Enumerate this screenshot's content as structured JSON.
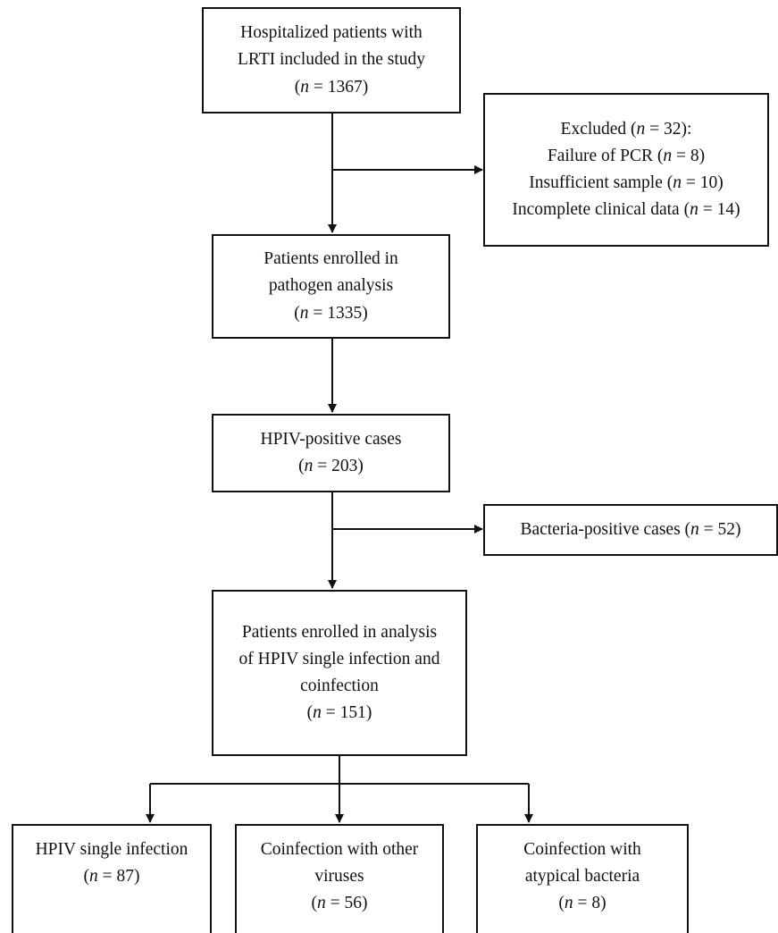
{
  "boxes": {
    "included": {
      "line1": "Hospitalized patients with",
      "line2": "LRTI included in the study",
      "count": "1367"
    },
    "excluded": {
      "head": "Excluded (",
      "head_count": "32",
      "head_tail": "):",
      "reason1": "Failure of PCR",
      "reason1_count": "8",
      "reason2": "Insufficient sample",
      "reason2_count": "10",
      "reason3": "Incomplete clinical data",
      "reason3_count": "14"
    },
    "enrolled": {
      "line1": "Patients enrolled in",
      "line2": "pathogen analysis",
      "count": "1335"
    },
    "hpiv_positive": {
      "line1": "HPIV-positive cases",
      "count": "203"
    },
    "bacteria_positive": {
      "line1": "Bacteria-positive cases",
      "count": "52"
    },
    "analysis": {
      "line1": "Patients enrolled in analysis",
      "line2": "of HPIV single infection and",
      "line3": "coinfection",
      "count": "151"
    },
    "single": {
      "line1": "HPIV single infection",
      "count": "87"
    },
    "coinf_viruses": {
      "line1": "Coinfection with other",
      "line2": "viruses",
      "count": "56"
    },
    "coinf_bacteria": {
      "line1": "Coinfection with",
      "line2": "atypical bacteria",
      "count": "8"
    }
  },
  "n_symbol": "n",
  "eq": " = "
}
